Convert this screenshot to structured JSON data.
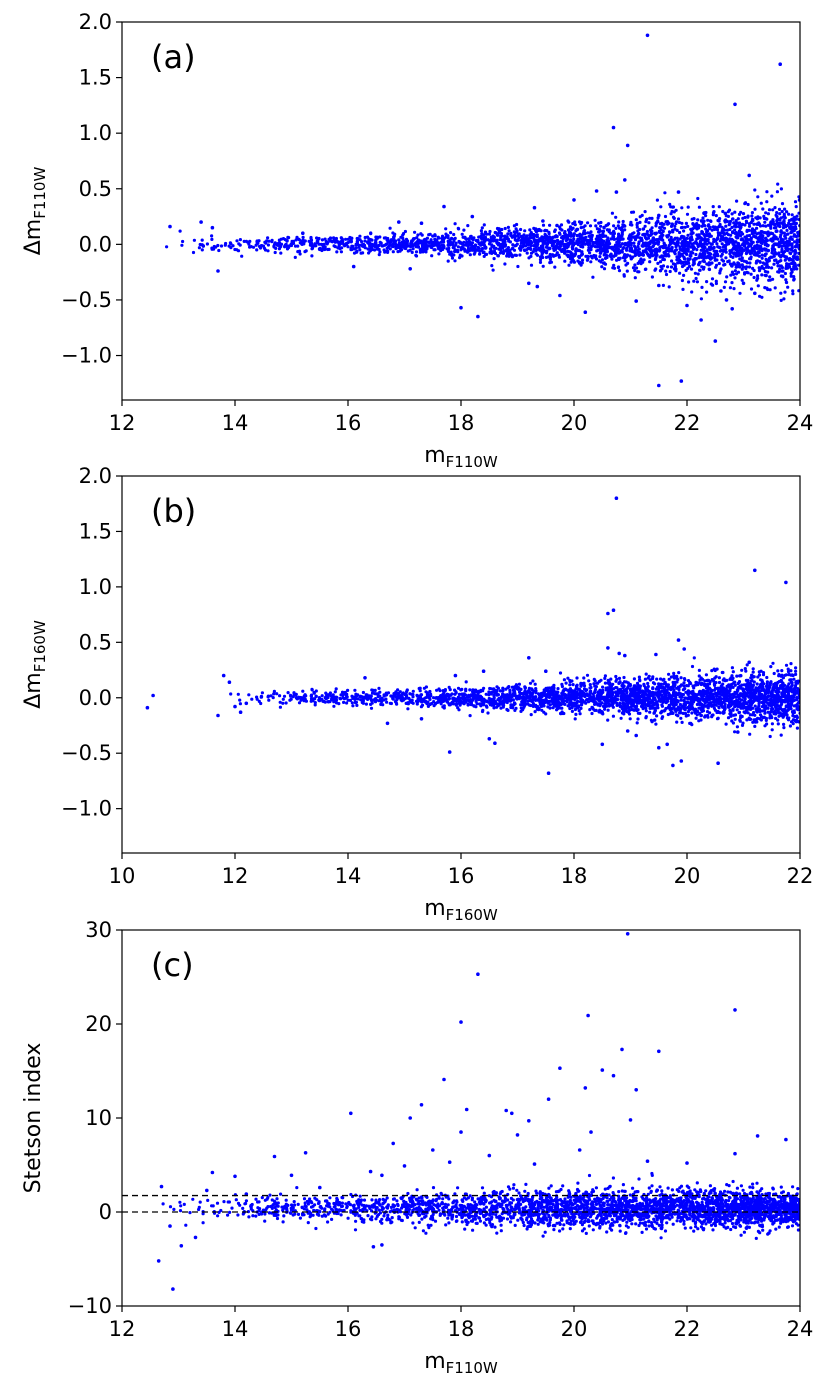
{
  "colors": {
    "points": "#0000ff",
    "axes": "#000000",
    "reference_lines": "#000000"
  },
  "chart_data": [
    {
      "type": "scatter",
      "panel_label": "(a)",
      "xlabel": {
        "main": "m",
        "sub": "F110W"
      },
      "ylabel": {
        "main": "Δm",
        "sub": "F110W"
      },
      "xlim": [
        12,
        24
      ],
      "ylim": [
        -1.4,
        2.0
      ],
      "xticks": [
        12,
        14,
        16,
        18,
        20,
        22,
        24
      ],
      "yticks": [
        -1.0,
        -0.5,
        0.0,
        0.5,
        1.0,
        1.5,
        2.0
      ],
      "ytick_labels": [
        "−1.0",
        "−0.5",
        "0.0",
        "0.5",
        "1.0",
        "1.5",
        "2.0"
      ],
      "grid": false,
      "marker_color": "#0000ff",
      "bulk_band": [
        [
          12.6,
          0.05
        ],
        [
          14,
          0.03
        ],
        [
          16,
          0.04
        ],
        [
          18,
          0.06
        ],
        [
          20,
          0.09
        ],
        [
          22,
          0.14
        ],
        [
          24,
          0.2
        ]
      ],
      "outliers": [
        [
          21.3,
          1.88
        ],
        [
          23.65,
          1.62
        ],
        [
          22.85,
          1.26
        ],
        [
          20.7,
          1.05
        ],
        [
          20.95,
          0.89
        ],
        [
          20.9,
          0.58
        ],
        [
          20.75,
          0.47
        ],
        [
          20.4,
          0.48
        ],
        [
          21.85,
          0.47
        ],
        [
          23.1,
          0.62
        ],
        [
          20.0,
          0.4
        ],
        [
          19.3,
          0.33
        ],
        [
          17.7,
          0.34
        ],
        [
          18.2,
          0.25
        ],
        [
          16.9,
          0.2
        ],
        [
          13.4,
          0.2
        ],
        [
          12.85,
          0.16
        ],
        [
          13.6,
          0.15
        ],
        [
          15.2,
          0.1
        ],
        [
          17.3,
          0.19
        ],
        [
          19.45,
          0.21
        ],
        [
          19.7,
          0.17
        ],
        [
          21.5,
          0.26
        ],
        [
          22.3,
          0.28
        ],
        [
          18.0,
          -0.57
        ],
        [
          18.3,
          -0.65
        ],
        [
          19.75,
          -0.46
        ],
        [
          20.2,
          -0.61
        ],
        [
          21.1,
          -0.51
        ],
        [
          21.5,
          -0.37
        ],
        [
          22.0,
          -0.55
        ],
        [
          22.25,
          -0.68
        ],
        [
          22.5,
          -0.87
        ],
        [
          23.0,
          -0.35
        ],
        [
          23.4,
          -0.28
        ],
        [
          21.9,
          -1.23
        ],
        [
          21.5,
          -1.27
        ],
        [
          13.7,
          -0.24
        ],
        [
          16.1,
          -0.2
        ],
        [
          17.1,
          -0.22
        ],
        [
          19.2,
          -0.35
        ],
        [
          19.35,
          -0.38
        ],
        [
          22.7,
          -0.5
        ],
        [
          22.6,
          -0.42
        ],
        [
          22.8,
          -0.58
        ],
        [
          23.2,
          -0.44
        ]
      ]
    },
    {
      "type": "scatter",
      "panel_label": "(b)",
      "xlabel": {
        "main": "m",
        "sub": "F160W"
      },
      "ylabel": {
        "main": "Δm",
        "sub": "F160W"
      },
      "xlim": [
        10,
        22
      ],
      "ylim": [
        -1.4,
        2.0
      ],
      "xticks": [
        10,
        12,
        14,
        16,
        18,
        20,
        22
      ],
      "yticks": [
        -1.0,
        -0.5,
        0.0,
        0.5,
        1.0,
        1.5,
        2.0
      ],
      "ytick_labels": [
        "−1.0",
        "−0.5",
        "0.0",
        "0.5",
        "1.0",
        "1.5",
        "2.0"
      ],
      "grid": false,
      "marker_color": "#0000ff",
      "bulk_band": [
        [
          11.7,
          0.05
        ],
        [
          13,
          0.03
        ],
        [
          15,
          0.04
        ],
        [
          17,
          0.06
        ],
        [
          19,
          0.08
        ],
        [
          20.5,
          0.1
        ],
        [
          22,
          0.12
        ]
      ],
      "outliers": [
        [
          10.45,
          -0.09
        ],
        [
          10.55,
          0.02
        ],
        [
          11.7,
          -0.16
        ],
        [
          11.8,
          0.2
        ],
        [
          11.9,
          0.14
        ],
        [
          12.0,
          -0.08
        ],
        [
          12.1,
          -0.13
        ],
        [
          12.2,
          -0.05
        ],
        [
          18.75,
          1.8
        ],
        [
          21.2,
          1.15
        ],
        [
          21.75,
          1.04
        ],
        [
          18.6,
          0.76
        ],
        [
          18.7,
          0.79
        ],
        [
          18.8,
          0.4
        ],
        [
          18.6,
          0.45
        ],
        [
          18.9,
          0.38
        ],
        [
          19.45,
          0.39
        ],
        [
          19.85,
          0.52
        ],
        [
          19.95,
          0.44
        ],
        [
          21.1,
          0.32
        ],
        [
          17.2,
          0.36
        ],
        [
          17.5,
          0.24
        ],
        [
          16.4,
          0.24
        ],
        [
          15.9,
          0.2
        ],
        [
          14.3,
          0.18
        ],
        [
          15.8,
          -0.49
        ],
        [
          16.5,
          -0.37
        ],
        [
          16.6,
          -0.41
        ],
        [
          17.55,
          -0.68
        ],
        [
          18.5,
          -0.42
        ],
        [
          19.1,
          -0.34
        ],
        [
          19.5,
          -0.45
        ],
        [
          19.65,
          -0.42
        ],
        [
          19.75,
          -0.61
        ],
        [
          19.9,
          -0.57
        ],
        [
          20.55,
          -0.59
        ],
        [
          20.9,
          -0.31
        ],
        [
          18.95,
          -0.3
        ],
        [
          14.7,
          -0.23
        ],
        [
          15.3,
          -0.19
        ]
      ]
    },
    {
      "type": "scatter",
      "panel_label": "(c)",
      "xlabel": {
        "main": "m",
        "sub": "F110W"
      },
      "ylabel": {
        "main": "Stetson index",
        "sub": ""
      },
      "xlim": [
        12,
        24
      ],
      "ylim": [
        -10,
        30
      ],
      "xticks": [
        12,
        14,
        16,
        18,
        20,
        22,
        24
      ],
      "yticks": [
        -10,
        0,
        10,
        20,
        30
      ],
      "ytick_labels": [
        "−10",
        "0",
        "10",
        "20",
        "30"
      ],
      "grid": false,
      "marker_color": "#0000ff",
      "reference_lines": [
        0.0,
        1.75
      ],
      "bulk_band": [
        [
          12.6,
          0.7
        ],
        [
          14,
          0.7
        ],
        [
          16,
          0.8
        ],
        [
          18,
          1.0
        ],
        [
          20,
          1.1
        ],
        [
          22,
          1.1
        ],
        [
          24,
          1.0
        ]
      ],
      "outliers": [
        [
          20.95,
          29.6
        ],
        [
          18.3,
          25.3
        ],
        [
          22.85,
          21.5
        ],
        [
          20.25,
          20.9
        ],
        [
          18.0,
          20.2
        ],
        [
          21.5,
          17.1
        ],
        [
          20.85,
          17.3
        ],
        [
          19.75,
          15.3
        ],
        [
          20.5,
          15.1
        ],
        [
          17.7,
          14.1
        ],
        [
          20.7,
          14.5
        ],
        [
          20.2,
          13.2
        ],
        [
          21.1,
          13.0
        ],
        [
          19.55,
          12.0
        ],
        [
          17.3,
          11.4
        ],
        [
          18.8,
          10.8
        ],
        [
          18.9,
          10.5
        ],
        [
          18.1,
          10.9
        ],
        [
          19.2,
          9.7
        ],
        [
          16.05,
          10.5
        ],
        [
          17.1,
          10.0
        ],
        [
          18.0,
          8.5
        ],
        [
          21.0,
          9.8
        ],
        [
          20.3,
          8.5
        ],
        [
          19.0,
          8.2
        ],
        [
          23.25,
          8.1
        ],
        [
          23.75,
          7.7
        ],
        [
          16.8,
          7.3
        ],
        [
          17.5,
          6.6
        ],
        [
          20.1,
          6.6
        ],
        [
          22.85,
          6.2
        ],
        [
          15.25,
          6.3
        ],
        [
          14.7,
          5.9
        ],
        [
          18.5,
          6.0
        ],
        [
          21.3,
          5.4
        ],
        [
          22.0,
          5.2
        ],
        [
          13.6,
          4.2
        ],
        [
          14.0,
          3.8
        ],
        [
          15.0,
          3.9
        ],
        [
          16.4,
          4.3
        ],
        [
          16.6,
          3.9
        ],
        [
          17.0,
          4.9
        ],
        [
          17.8,
          5.3
        ],
        [
          19.3,
          5.1
        ],
        [
          12.65,
          -5.2
        ],
        [
          12.9,
          -8.2
        ],
        [
          13.05,
          -3.6
        ],
        [
          12.85,
          -1.5
        ],
        [
          13.3,
          -2.7
        ],
        [
          16.45,
          -3.7
        ],
        [
          16.6,
          -3.5
        ],
        [
          12.7,
          2.7
        ],
        [
          13.5,
          2.3
        ],
        [
          14.2,
          1.9
        ],
        [
          15.5,
          2.6
        ]
      ]
    }
  ]
}
